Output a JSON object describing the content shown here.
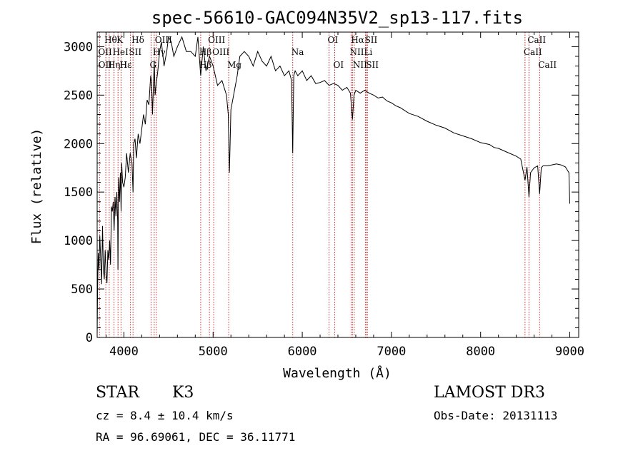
{
  "chart_data": {
    "type": "line",
    "title": "spec-56610-GAC094N35V2_sp13-117.fits",
    "xlabel": "Wavelength (Å)",
    "ylabel": "Flux (relative)",
    "xlim": [
      3700,
      9100
    ],
    "ylim": [
      0,
      3150
    ],
    "xticks": [
      4000,
      5000,
      6000,
      7000,
      8000,
      9000
    ],
    "yticks": [
      0,
      500,
      1000,
      1500,
      2000,
      2500,
      3000
    ],
    "colors": {
      "spectrum": "#000000",
      "lines": "#cc2222"
    },
    "series": [
      {
        "name": "flux",
        "x": [
          3700,
          3705,
          3712,
          3720,
          3730,
          3740,
          3750,
          3760,
          3770,
          3780,
          3790,
          3800,
          3810,
          3820,
          3830,
          3840,
          3850,
          3860,
          3870,
          3880,
          3890,
          3900,
          3910,
          3920,
          3930,
          3933,
          3940,
          3950,
          3960,
          3968,
          3975,
          3985,
          4000,
          4015,
          4030,
          4050,
          4070,
          4090,
          4102,
          4110,
          4125,
          4140,
          4160,
          4180,
          4200,
          4220,
          4240,
          4260,
          4280,
          4300,
          4310,
          4320,
          4340,
          4350,
          4360,
          4380,
          4400,
          4420,
          4450,
          4480,
          4500,
          4530,
          4560,
          4600,
          4650,
          4700,
          4750,
          4800,
          4830,
          4861,
          4890,
          4920,
          4960,
          5000,
          5050,
          5100,
          5150,
          5170,
          5183,
          5200,
          5230,
          5270,
          5300,
          5350,
          5400,
          5450,
          5500,
          5550,
          5600,
          5650,
          5700,
          5750,
          5800,
          5850,
          5880,
          5893,
          5905,
          5920,
          5950,
          6000,
          6050,
          6100,
          6150,
          6200,
          6250,
          6300,
          6350,
          6400,
          6450,
          6500,
          6540,
          6563,
          6580,
          6600,
          6650,
          6700,
          6750,
          6800,
          6850,
          6900,
          6950,
          7000,
          7050,
          7100,
          7150,
          7200,
          7300,
          7400,
          7500,
          7600,
          7700,
          7800,
          7900,
          8000,
          8100,
          8150,
          8200,
          8300,
          8400,
          8450,
          8498,
          8520,
          8542,
          8560,
          8600,
          8640,
          8662,
          8680,
          8700,
          8750,
          8800,
          8850,
          8900,
          8950,
          8990,
          9000
        ],
        "y": [
          30,
          500,
          870,
          700,
          1050,
          800,
          550,
          1150,
          700,
          600,
          900,
          650,
          560,
          900,
          800,
          1000,
          750,
          1350,
          1300,
          1400,
          1100,
          1450,
          1250,
          1500,
          1200,
          700,
          1650,
          1400,
          1700,
          1300,
          1800,
          1600,
          1550,
          1650,
          1900,
          1700,
          1900,
          1800,
          1500,
          2000,
          2050,
          1850,
          2100,
          2000,
          2150,
          2300,
          2200,
          2450,
          2400,
          2700,
          2650,
          2300,
          2850,
          2500,
          2600,
          2750,
          2950,
          3050,
          2800,
          2950,
          3100,
          3050,
          2900,
          3000,
          3100,
          2950,
          2950,
          2900,
          3100,
          2700,
          3000,
          2750,
          2900,
          2800,
          2600,
          2650,
          2500,
          2300,
          1700,
          2350,
          2500,
          2700,
          2900,
          2950,
          2900,
          2800,
          2950,
          2850,
          2800,
          2900,
          2750,
          2800,
          2700,
          2750,
          2650,
          1900,
          2700,
          2750,
          2700,
          2750,
          2650,
          2700,
          2620,
          2630,
          2650,
          2600,
          2620,
          2600,
          2550,
          2580,
          2520,
          2250,
          2500,
          2550,
          2520,
          2550,
          2520,
          2500,
          2470,
          2480,
          2440,
          2420,
          2390,
          2370,
          2340,
          2310,
          2280,
          2230,
          2190,
          2160,
          2110,
          2080,
          2050,
          2010,
          1990,
          1960,
          1950,
          1910,
          1870,
          1840,
          1620,
          1760,
          1450,
          1700,
          1750,
          1770,
          1480,
          1750,
          1770,
          1770,
          1780,
          1790,
          1780,
          1760,
          1700,
          1380
        ]
      }
    ],
    "line_markers": {
      "row1": [
        {
          "label": "Hθ",
          "x": 3797
        },
        {
          "label": "K",
          "x": 3934
        },
        {
          "label": "Hδ",
          "x": 4102
        },
        {
          "label": "OIII",
          "x": 4363
        },
        {
          "label": "OIII",
          "x": 4959
        },
        {
          "label": "OI",
          "x": 6300
        },
        {
          "label": "Hα",
          "x": 6563
        },
        {
          "label": "SII",
          "x": 6717
        },
        {
          "label": "CaII",
          "x": 8542
        }
      ],
      "row2": [
        {
          "label": "OII",
          "x": 3727
        },
        {
          "label": "HeI",
          "x": 3889
        },
        {
          "label": "SII",
          "x": 4072
        },
        {
          "label": "Hγ",
          "x": 4340
        },
        {
          "label": "Hβ",
          "x": 4861
        },
        {
          "label": "OIII",
          "x": 5007
        },
        {
          "label": "Na",
          "x": 5893
        },
        {
          "label": "NII",
          "x": 6548
        },
        {
          "label": "Li",
          "x": 6708
        },
        {
          "label": "CaII",
          "x": 8498
        }
      ],
      "row3": [
        {
          "label": "OII",
          "x": 3729
        },
        {
          "label": "Hε",
          "x": 3970
        },
        {
          "label": "Hη",
          "x": 3835
        },
        {
          "label": "H",
          "x": 3968
        },
        {
          "label": "G",
          "x": 4305
        },
        {
          "label": "Hβ",
          "x": 4861
        },
        {
          "label": "Mg",
          "x": 5175
        },
        {
          "label": "OI",
          "x": 6364
        },
        {
          "label": "NII",
          "x": 6583
        },
        {
          "label": "SII",
          "x": 6731
        },
        {
          "label": "CaII",
          "x": 8662
        }
      ],
      "verticals": [
        3727,
        3797,
        3835,
        3889,
        3934,
        3968,
        4072,
        4102,
        4305,
        4340,
        4363,
        4861,
        4959,
        5007,
        5175,
        5893,
        6300,
        6364,
        6548,
        6563,
        6583,
        6708,
        6717,
        6731,
        8498,
        8542,
        8662
      ]
    }
  },
  "info": {
    "object_class": "STAR",
    "subclass": "K3",
    "survey": "LAMOST DR3",
    "cz_line": "cz = 8.4 ± 10.4 km/s",
    "obs_date": "Obs-Date: 20131113",
    "coords": "RA =  96.69061, DEC =  36.11771"
  }
}
